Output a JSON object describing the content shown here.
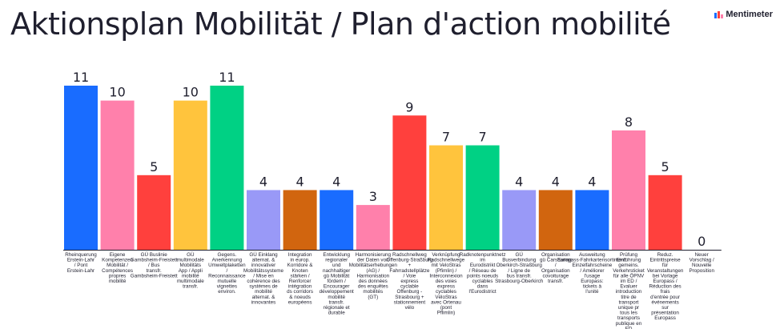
{
  "page": {
    "title": "Aktionsplan Mobilität / Plan d'action mobilité",
    "brand": "Mentimeter"
  },
  "chart_data": {
    "type": "bar",
    "ylim": [
      0,
      11
    ],
    "categories": [
      "Rheinquerung Erstein-Lahr / Pont Erstein-Lahr",
      "Eigene Kompetenzen Mobilität / Compétences propres mobilité",
      "GÜ Buslinie Gambsheim-Freistett / Bus transfr. Gambsheim-Freistett",
      "GÜ multimodale Mobilitäts App / Appli mobilité multimodale transfr.",
      "Gegens. Anerkennung Umweltplaketten / Reconnaissance mutuelle vignettes environ.",
      "GÜ Einklang alternat. & innovativer Mobilitätssysteme / Mise en cohérence des systèmes de mobilité alternat. & innovantes",
      "Integration in europ. Korridore & Knoten stärken / Renforcer intégration ds corridors & noeuds européens",
      "Entwicklung regionaler und nachhaltiger gü Mobilität fördern / Encourager développement mobilité transfr. régionale et durable",
      "Harmonisierung der Daten von Mobilitätserhebungen (AG) / Harmonisation des données des enquêtes mobilités (GT)",
      "Radschnellweg Offenburg-Straßburg + Fahrradstellplätze / Voie express cyclable Offenburg - Strasbourg + stationnement vélo",
      "Verknüpfung Radschnellwege mit VeloStras (Pfimlin) / Interconnexion des voies express cyclables VéloStras avec Ortenau (pont Pflimlin)",
      "Radknotenpunktnetz im Eurodistrikt / Réseau de points noeuds cyclables dans l'Eurodistrict",
      "GÜ Busverbindung Oberkirch-Straßburg / Ligne de bus transfr. Strasbourg-Oberkirch",
      "Organisation gü Carsharing / Organisation covoiturage transfr.",
      "Ausweitung Europass-Fahrkartensortiment: Einzelfahrscheine / Améliorer l'usage Europass: tickets à l'unité",
      "Prüfung Einführung gemeins. Verkehrsticket für alle ÖPNV im ED / Evaluer introduction titre de transport unique pr tous les transports publique en ED",
      "Reduz. Eintrittspreise für Veranstaltungen bei Vorlage Europass / Réduction des frais d'entrée pour événements sur présentation Europass",
      "Neuer Vorschlag / Nouvelle Proposition"
    ],
    "values": [
      11,
      10,
      5,
      10,
      11,
      4,
      4,
      4,
      3,
      9,
      7,
      7,
      4,
      4,
      4,
      8,
      5,
      0
    ],
    "colors": [
      "#196cff",
      "#ff80ab",
      "#ff403d",
      "#ffc43d",
      "#00d184",
      "#9999f7",
      "#d1650f",
      "#196cff",
      "#ff80ab",
      "#ff403d",
      "#ffc43d",
      "#00d184",
      "#9999f7",
      "#d1650f",
      "#196cff",
      "#ff80ab",
      "#ff403d",
      "#ffc43d"
    ],
    "grid": false,
    "legend": "none"
  }
}
